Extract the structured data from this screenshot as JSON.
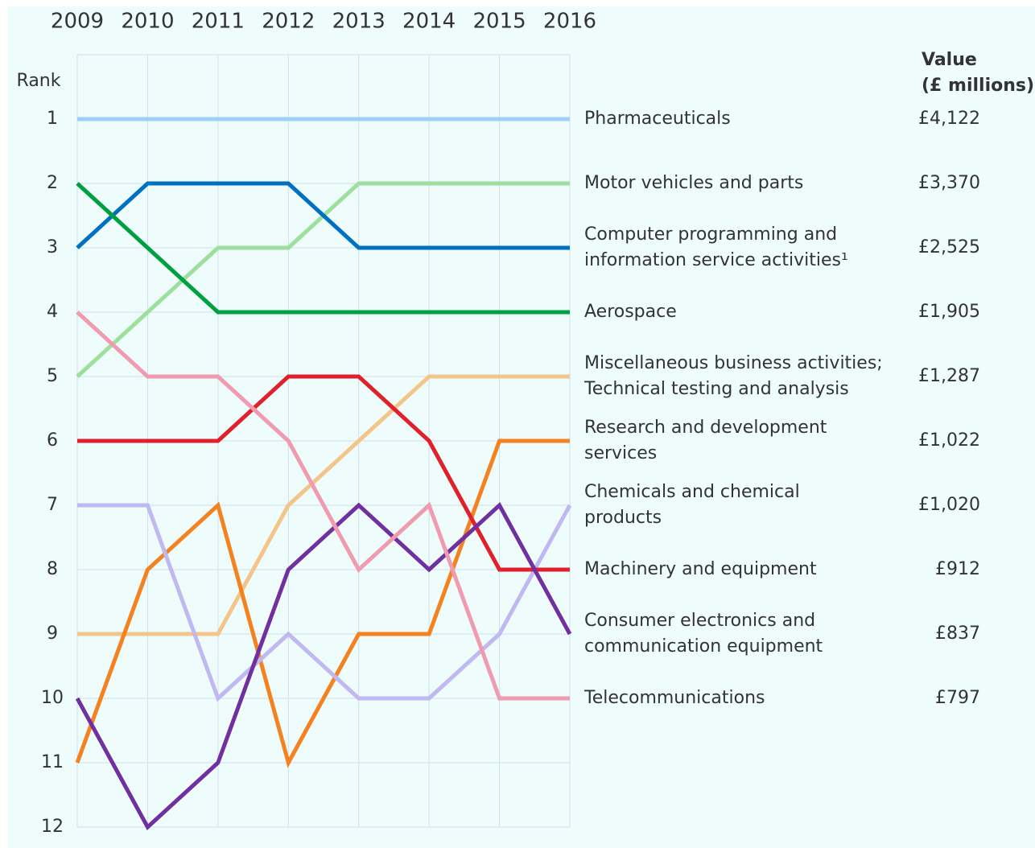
{
  "chart_data": {
    "type": "bump",
    "y_label": "Rank",
    "value_header": "Value\n(£ millions)",
    "x": [
      "2009",
      "2010",
      "2011",
      "2012",
      "2013",
      "2014",
      "2015",
      "2016"
    ],
    "ylim": [
      0,
      12
    ],
    "y_reversed": true,
    "yticks": [
      1,
      2,
      3,
      4,
      5,
      6,
      7,
      8,
      9,
      10,
      11,
      12
    ],
    "grid": true,
    "series": [
      {
        "name": "Pharmaceuticals",
        "value": "£4,122",
        "color": "#9dd0f5",
        "values": [
          1,
          1,
          1,
          1,
          1,
          1,
          1,
          1
        ]
      },
      {
        "name": "Motor vehicles and parts",
        "value": "£3,370",
        "color": "#9de09d",
        "values": [
          5,
          4,
          3,
          3,
          2,
          2,
          2,
          2
        ]
      },
      {
        "name": "Computer programming and\ninformation service activities¹",
        "value": "£2,525",
        "color": "#0070c0",
        "values": [
          3,
          2,
          2,
          2,
          3,
          3,
          3,
          3
        ]
      },
      {
        "name": "Aerospace",
        "value": "£1,905",
        "color": "#00a040",
        "values": [
          2,
          3,
          4,
          4,
          4,
          4,
          4,
          4
        ]
      },
      {
        "name": "Miscellaneous business activities;\nTechnical testing and analysis",
        "value": "£1,287",
        "color": "#f4c58a",
        "values": [
          9,
          9,
          9,
          7,
          6,
          5,
          5,
          5
        ]
      },
      {
        "name": "Research and development\nservices",
        "value": "£1,022",
        "color": "#f58220",
        "values": [
          11,
          8,
          7,
          11,
          9,
          9,
          6,
          6
        ]
      },
      {
        "name": "Chemicals and chemical\nproducts",
        "value": "£1,020",
        "color": "#c0b8f0",
        "values": [
          7,
          7,
          10,
          9,
          10,
          10,
          9,
          7
        ]
      },
      {
        "name": "Machinery and equipment",
        "value": "£912",
        "color": "#e0202a",
        "values": [
          6,
          6,
          6,
          5,
          5,
          6,
          8,
          8
        ]
      },
      {
        "name": "Consumer electronics and\ncommunication equipment",
        "value": "£837",
        "color": "#7030a0",
        "values": [
          10,
          12,
          11,
          8,
          7,
          8,
          7,
          9
        ]
      },
      {
        "name": "Telecommunications",
        "value": "£797",
        "color": "#f09bb0",
        "values": [
          4,
          5,
          5,
          6,
          8,
          7,
          10,
          10
        ]
      }
    ]
  }
}
